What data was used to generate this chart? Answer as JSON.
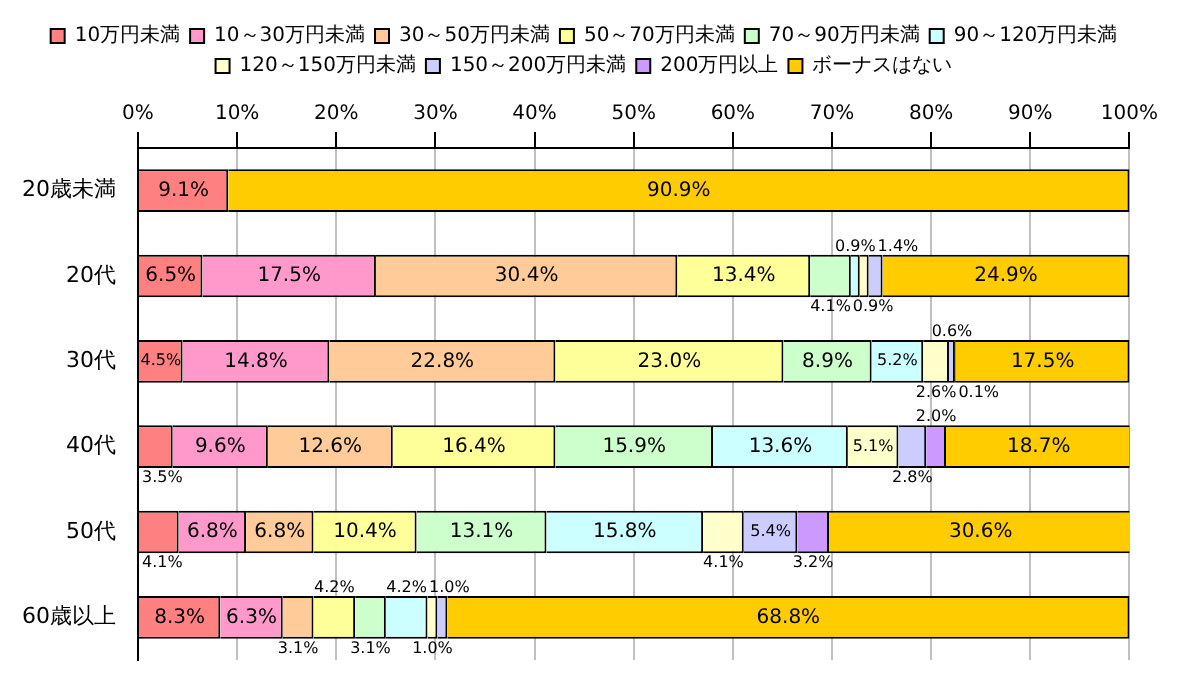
{
  "chart_data": {
    "type": "bar",
    "orientation": "horizontal",
    "stacked": true,
    "legend": "top",
    "grid": "x",
    "categories": [
      "20歳未満",
      "20代",
      "30代",
      "40代",
      "50代",
      "60歳以上"
    ],
    "xlim": [
      0,
      100
    ],
    "xticks": [
      {
        "value": 0,
        "label": "0%"
      },
      {
        "value": 10,
        "label": "10%"
      },
      {
        "value": 20,
        "label": "20%"
      },
      {
        "value": 30,
        "label": "30%"
      },
      {
        "value": 40,
        "label": "40%"
      },
      {
        "value": 50,
        "label": "50%"
      },
      {
        "value": 60,
        "label": "60%"
      },
      {
        "value": 70,
        "label": "70%"
      },
      {
        "value": 80,
        "label": "80%"
      },
      {
        "value": 90,
        "label": "90%"
      },
      {
        "value": 100,
        "label": "100%"
      }
    ],
    "series": [
      {
        "name": "10万円未満",
        "color": "#ff8080",
        "values": [
          9.1,
          6.5,
          4.5,
          3.5,
          4.1,
          8.3
        ],
        "value_labels": [
          "9.1%",
          "6.5%",
          "4.5%",
          "3.5%",
          "4.1%",
          "8.3%"
        ]
      },
      {
        "name": "10～30万円未満",
        "color": "#ff99cc",
        "values": [
          0,
          17.5,
          14.8,
          9.6,
          6.8,
          6.3
        ],
        "value_labels": [
          null,
          "17.5%",
          "14.8%",
          "9.6%",
          "6.8%",
          "6.3%"
        ]
      },
      {
        "name": "30～50万円未満",
        "color": "#ffcc99",
        "values": [
          0,
          30.4,
          22.8,
          12.6,
          6.8,
          3.1
        ],
        "value_labels": [
          null,
          "30.4%",
          "22.8%",
          "12.6%",
          "6.8%",
          "3.1%"
        ]
      },
      {
        "name": "50～70万円未満",
        "color": "#ffff99",
        "values": [
          0,
          13.4,
          23.0,
          16.4,
          10.4,
          4.2
        ],
        "value_labels": [
          null,
          "13.4%",
          "23.0%",
          "16.4%",
          "10.4%",
          "4.2%"
        ]
      },
      {
        "name": "70～90万円未満",
        "color": "#ccffcc",
        "values": [
          0,
          4.1,
          8.9,
          15.9,
          13.1,
          3.1
        ],
        "value_labels": [
          null,
          "4.1%",
          "8.9%",
          "15.9%",
          "13.1%",
          "3.1%"
        ]
      },
      {
        "name": "90～120万円未満",
        "color": "#ccffff",
        "values": [
          0,
          0.9,
          5.2,
          13.6,
          15.8,
          4.2
        ],
        "value_labels": [
          null,
          "0.9%",
          "5.2%",
          "13.6%",
          "15.8%",
          "4.2%"
        ]
      },
      {
        "name": "120～150万円未満",
        "color": "#ffffcc",
        "values": [
          0,
          0.9,
          2.6,
          5.1,
          4.1,
          1.0
        ],
        "value_labels": [
          null,
          "0.9%",
          "2.6%",
          "5.1%",
          "4.1%",
          "1.0%"
        ]
      },
      {
        "name": "150～200万円未満",
        "color": "#ccccff",
        "values": [
          0,
          1.4,
          0.6,
          2.8,
          5.4,
          1.0
        ],
        "value_labels": [
          null,
          "1.4%",
          "0.6%",
          "2.8%",
          "5.4%",
          "1.0%"
        ]
      },
      {
        "name": "200万円以上",
        "color": "#cc99ff",
        "values": [
          0,
          0,
          0.1,
          2.0,
          3.2,
          0
        ],
        "value_labels": [
          null,
          null,
          "0.1%",
          "2.0%",
          "3.2%",
          null
        ]
      },
      {
        "name": "ボーナスはない",
        "color": "#ffcc00",
        "values": [
          90.9,
          24.9,
          17.5,
          18.7,
          30.6,
          68.8
        ],
        "value_labels": [
          "90.9%",
          "24.9%",
          "17.5%",
          "18.7%",
          "30.6%",
          "68.8%"
        ]
      }
    ]
  }
}
